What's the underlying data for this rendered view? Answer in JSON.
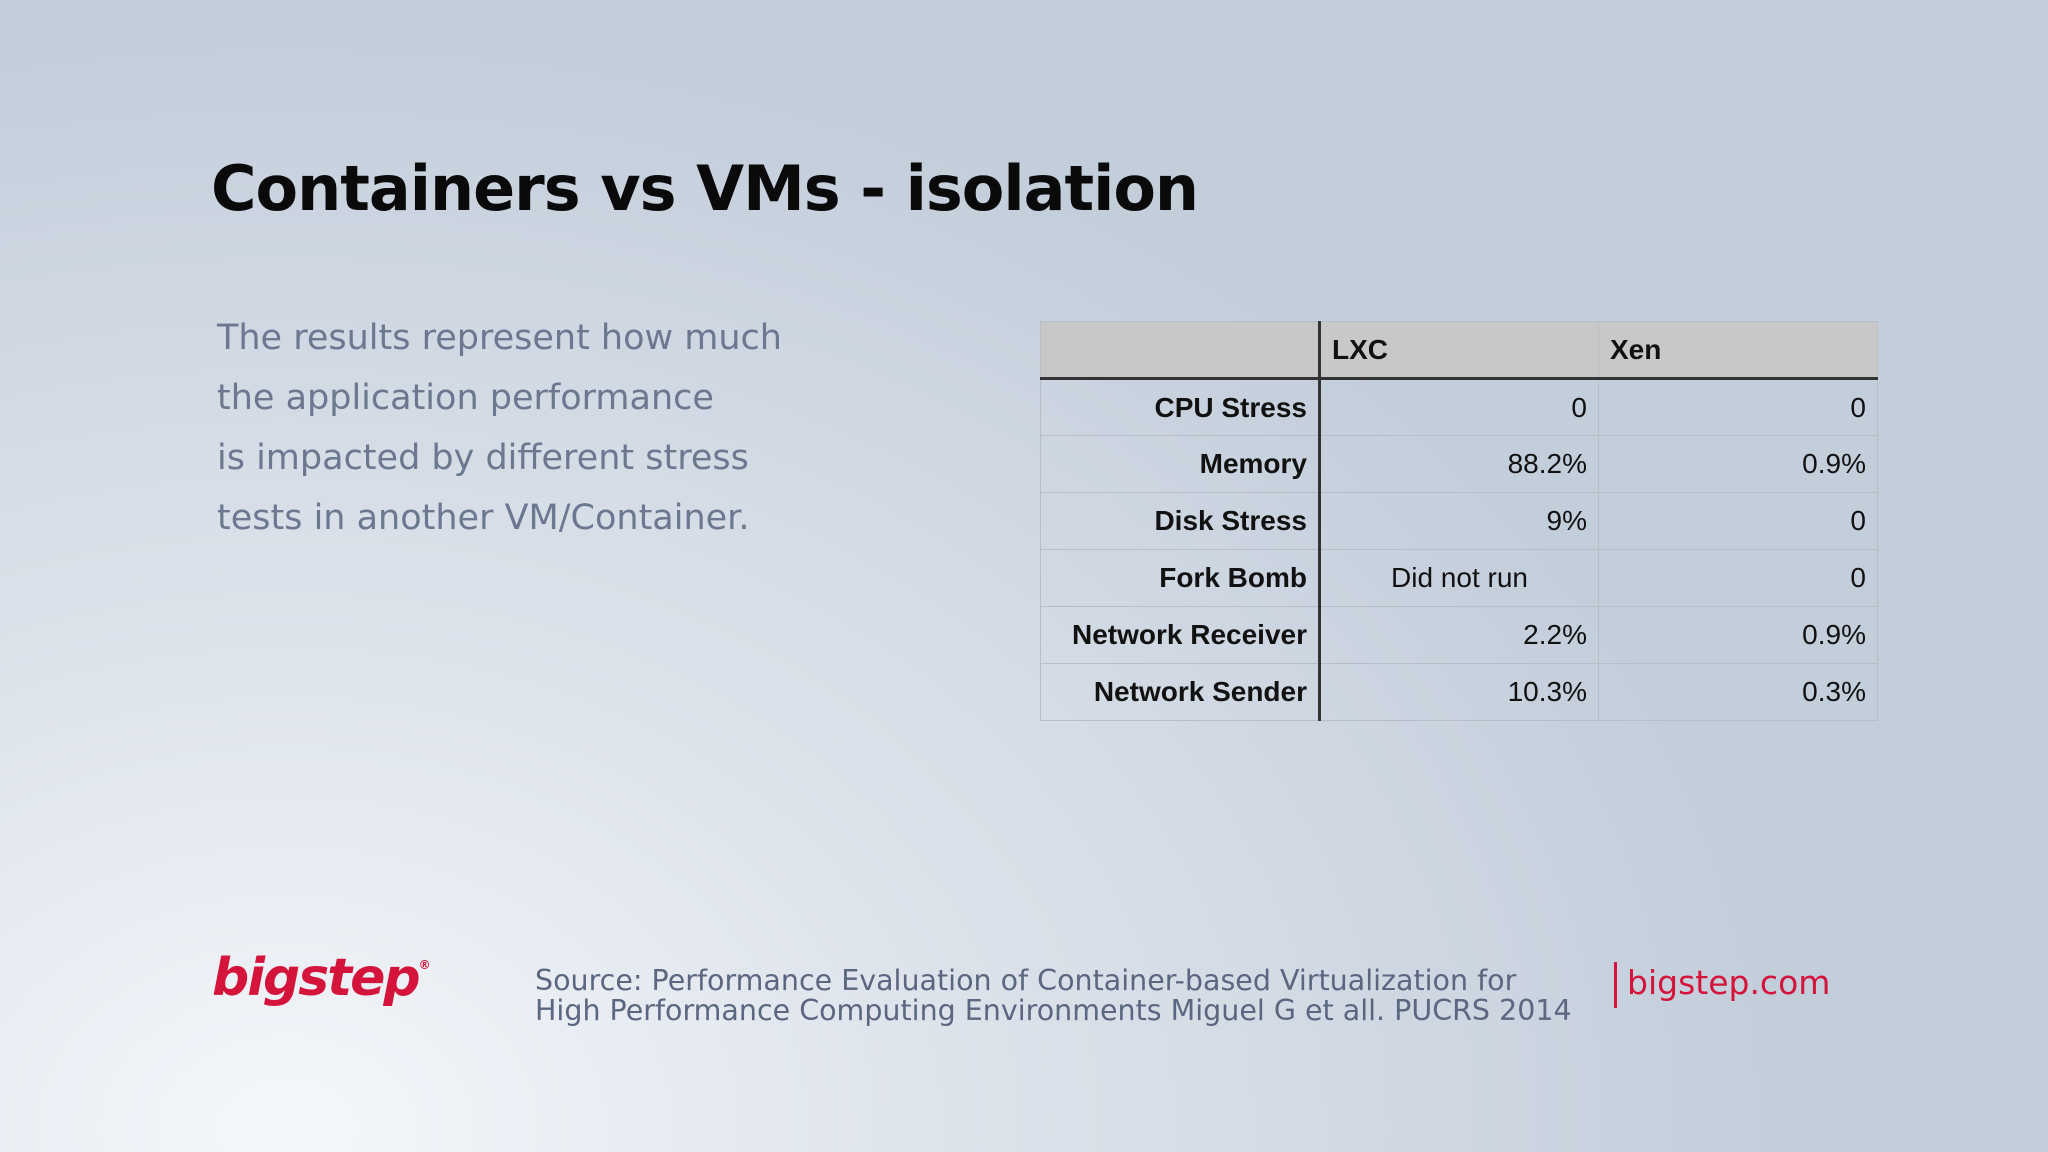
{
  "slide": {
    "title": "Containers vs VMs - isolation",
    "intro_lines": [
      "The results represent how much",
      "the application performance",
      "is impacted by different stress",
      "tests in another VM/Container."
    ]
  },
  "table": {
    "headers": [
      "",
      "LXC",
      "Xen"
    ],
    "rows": [
      {
        "label": "CPU Stress",
        "lxc": "0",
        "xen": "0"
      },
      {
        "label": "Memory",
        "lxc": "88.2%",
        "xen": "0.9%"
      },
      {
        "label": "Disk Stress",
        "lxc": "9%",
        "xen": "0"
      },
      {
        "label": "Fork Bomb",
        "lxc": "Did not run",
        "xen": "0"
      },
      {
        "label": "Network Receiver",
        "lxc": "2.2%",
        "xen": "0.9%"
      },
      {
        "label": "Network Sender",
        "lxc": "10.3%",
        "xen": "0.3%"
      }
    ]
  },
  "footer": {
    "logo_text": "bigstep",
    "logo_mark": "®",
    "source_lines": [
      "Source: Performance Evaluation of Container-based Virtualization for",
      "High Performance Computing Environments Miguel G et all. PUCRS 2014"
    ],
    "url": "bigstep.com"
  },
  "colors": {
    "brand_red": "#d4143a",
    "body_text": "#6b7890",
    "header_fill": "#c8c8c8"
  }
}
